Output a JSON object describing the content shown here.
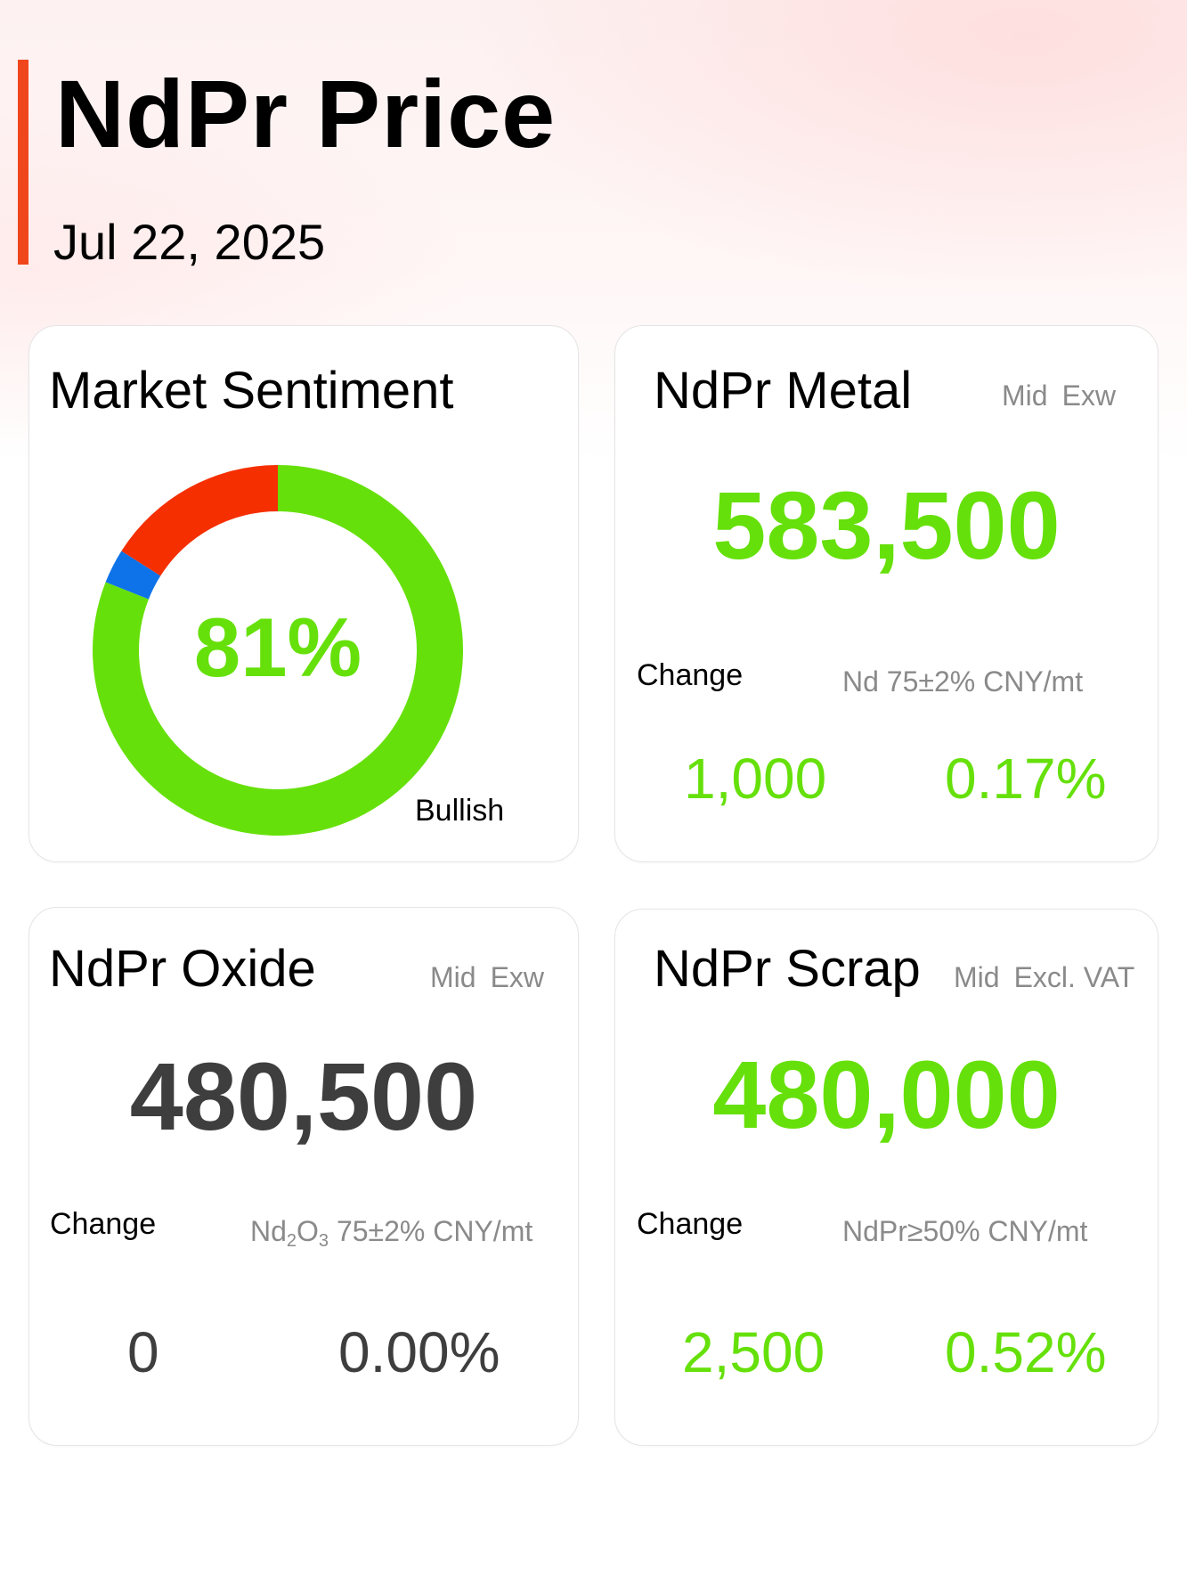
{
  "header": {
    "title": "NdPr Price",
    "date": "Jul 22, 2025"
  },
  "colors": {
    "accent": "#f0461c",
    "up": "#66e00a",
    "neutral": "#3e3e3e",
    "bearish": "#f52f00",
    "neutral_sentiment": "#0e73e8"
  },
  "sentiment": {
    "title": "Market Sentiment",
    "percent_label": "81%",
    "bullish_label": "Bullish",
    "chart_data": {
      "type": "pie",
      "categories": [
        "Bullish",
        "Neutral",
        "Bearish"
      ],
      "values": [
        81,
        3,
        16
      ]
    }
  },
  "metal": {
    "title": "NdPr Metal",
    "meta": [
      "Mid",
      "Exw"
    ],
    "price": "583,500",
    "change_label": "Change",
    "spec": "Nd 75±2% CNY/mt",
    "change_value": "1,000",
    "change_pct": "0.17%"
  },
  "oxide": {
    "title": "NdPr Oxide",
    "meta": [
      "Mid",
      "Exw"
    ],
    "price": "480,500",
    "change_label": "Change",
    "spec_prefix": "Nd",
    "spec_sub1": "2",
    "spec_mid": "O",
    "spec_sub2": "3",
    "spec_suffix": " 75±2% CNY/mt",
    "change_value": "0",
    "change_pct": "0.00%"
  },
  "scrap": {
    "title": "NdPr Scrap",
    "meta": [
      "Mid",
      "Excl. VAT"
    ],
    "price": "480,000",
    "change_label": "Change",
    "spec": "NdPr≥50% CNY/mt",
    "change_value": "2,500",
    "change_pct": "0.52%"
  }
}
